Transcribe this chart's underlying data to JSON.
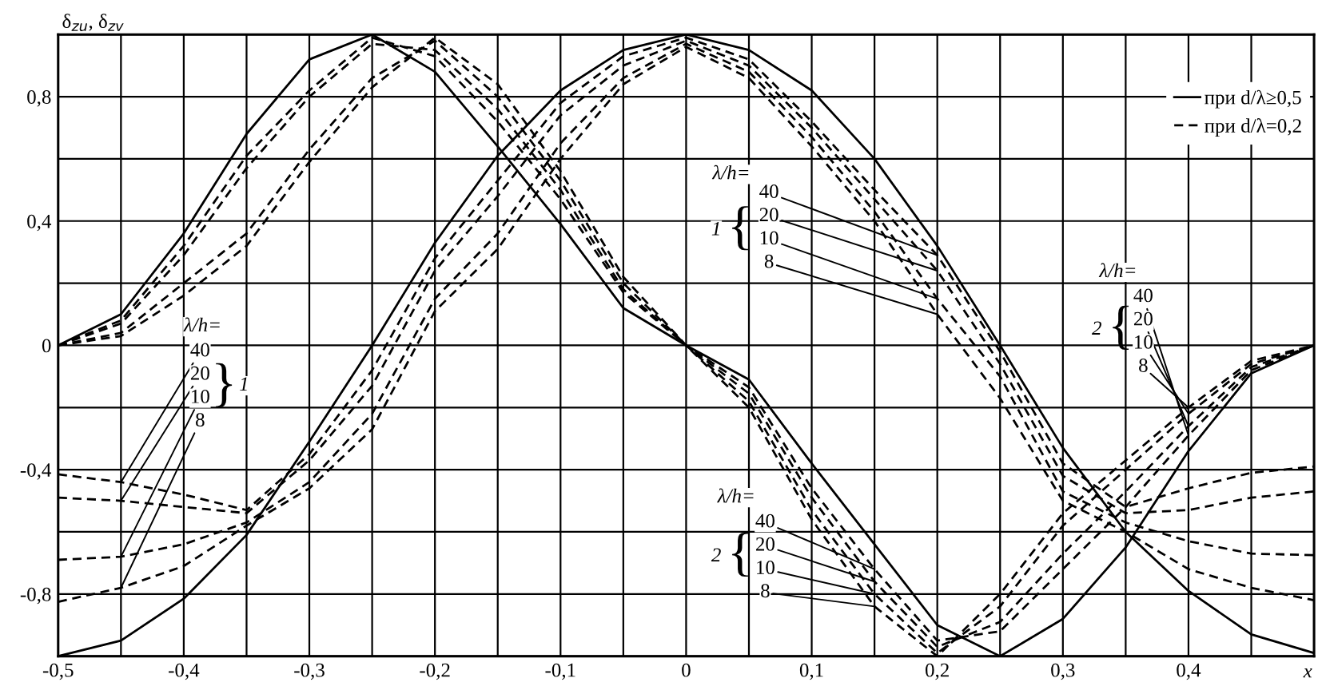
{
  "chart_data": {
    "type": "line",
    "xlabel": "x",
    "ylabel": "δ$_{zu}$, δ$_{zv}$",
    "x": [
      -0.5,
      -0.45,
      -0.4,
      -0.35,
      -0.3,
      -0.25,
      -0.2,
      -0.15,
      -0.1,
      -0.05,
      0,
      0.05,
      0.1,
      0.15,
      0.2,
      0.25,
      0.3,
      0.35,
      0.4,
      0.45,
      0.5
    ],
    "series": [
      {
        "name": "при d/λ≥0,5",
        "color": "#000000",
        "line_style": "solid",
        "values": [
          -1.0,
          -0.95,
          -0.815,
          -0.61,
          -0.31,
          0.0,
          0.33,
          0.61,
          0.82,
          0.95,
          1.0,
          0.95,
          0.82,
          0.6,
          0.32,
          0.0,
          -0.33,
          -0.6,
          -0.79,
          -0.93,
          -0.99
        ]
      },
      {
        "name": "при d/λ=0,2",
        "color": "#000000",
        "line_style": "dashed",
        "values": [
          -0.415,
          -0.44,
          -0.48,
          -0.53,
          -0.35,
          -0.08,
          0.28,
          0.53,
          0.78,
          0.93,
          0.99,
          0.92,
          0.72,
          0.5,
          0.29,
          -0.02,
          -0.38,
          -0.52,
          -0.46,
          -0.41,
          -0.39
        ]
      },
      {
        "color": "#000000",
        "line_style": "dashed",
        "values": [
          -0.49,
          -0.5,
          -0.52,
          -0.54,
          -0.37,
          -0.13,
          0.24,
          0.48,
          0.74,
          0.9,
          0.98,
          0.9,
          0.7,
          0.47,
          0.24,
          -0.06,
          -0.42,
          -0.54,
          -0.53,
          -0.49,
          -0.47
        ]
      },
      {
        "color": "#000000",
        "line_style": "dashed",
        "values": [
          -0.69,
          -0.68,
          -0.64,
          -0.57,
          -0.44,
          -0.22,
          0.15,
          0.36,
          0.65,
          0.86,
          0.97,
          0.88,
          0.67,
          0.43,
          0.15,
          -0.1,
          -0.47,
          -0.57,
          -0.63,
          -0.67,
          -0.675
        ]
      },
      {
        "color": "#000000",
        "line_style": "dashed",
        "values": [
          -0.825,
          -0.78,
          -0.71,
          -0.58,
          -0.46,
          -0.27,
          0.11,
          0.31,
          0.6,
          0.84,
          0.96,
          0.86,
          0.64,
          0.4,
          0.1,
          -0.17,
          -0.5,
          -0.6,
          -0.72,
          -0.78,
          -0.82
        ]
      },
      {
        "color": "#000000",
        "line_style": "solid",
        "values": [
          0,
          0.1,
          0.36,
          0.68,
          0.92,
          1.0,
          0.88,
          0.64,
          0.39,
          0.12,
          0,
          -0.11,
          -0.38,
          -0.64,
          -0.9,
          -1.0,
          -0.88,
          -0.65,
          -0.34,
          -0.09,
          0
        ]
      },
      {
        "color": "#000000",
        "line_style": "dashed",
        "values": [
          0,
          0.08,
          0.32,
          0.61,
          0.82,
          0.99,
          0.93,
          0.72,
          0.47,
          0.17,
          0,
          -0.135,
          -0.46,
          -0.72,
          -0.95,
          -0.92,
          -0.72,
          -0.52,
          -0.29,
          -0.08,
          0
        ]
      },
      {
        "color": "#000000",
        "line_style": "dashed",
        "values": [
          0,
          0.07,
          0.29,
          0.57,
          0.8,
          0.97,
          0.95,
          0.76,
          0.5,
          0.18,
          0,
          -0.155,
          -0.49,
          -0.76,
          -0.97,
          -0.89,
          -0.67,
          -0.47,
          -0.26,
          -0.07,
          0
        ]
      },
      {
        "color": "#000000",
        "line_style": "dashed",
        "values": [
          0,
          0.04,
          0.2,
          0.36,
          0.63,
          0.86,
          0.98,
          0.8,
          0.53,
          0.2,
          0,
          -0.18,
          -0.53,
          -0.8,
          -0.99,
          -0.84,
          -0.58,
          -0.4,
          -0.22,
          -0.06,
          0
        ]
      },
      {
        "color": "#000000",
        "line_style": "dashed",
        "values": [
          0,
          0.03,
          0.16,
          0.32,
          0.59,
          0.83,
          0.99,
          0.84,
          0.56,
          0.22,
          0,
          -0.2,
          -0.56,
          -0.84,
          -1.0,
          -0.8,
          -0.54,
          -0.37,
          -0.2,
          -0.05,
          0
        ]
      }
    ],
    "xlim": [
      -0.5,
      0.5
    ],
    "ylim": [
      -1.0,
      1.0
    ],
    "xticks": [
      {
        "value": -0.5,
        "label": "-0,5"
      },
      {
        "value": -0.45,
        "label": null
      },
      {
        "value": -0.4,
        "label": "-0,4"
      },
      {
        "value": -0.35,
        "label": null
      },
      {
        "value": -0.3,
        "label": "-0,3"
      },
      {
        "value": -0.25,
        "label": null
      },
      {
        "value": -0.2,
        "label": "-0,2"
      },
      {
        "value": -0.15,
        "label": null
      },
      {
        "value": -0.1,
        "label": "-0,1"
      },
      {
        "value": -0.05,
        "label": null
      },
      0,
      {
        "value": 0.05,
        "label": null
      },
      {
        "value": 0.1,
        "label": "0,1"
      },
      {
        "value": 0.15,
        "label": null
      },
      {
        "value": 0.2,
        "label": "0,2"
      },
      {
        "value": 0.25,
        "label": null
      },
      {
        "value": 0.3,
        "label": "0,3"
      },
      {
        "value": 0.35,
        "label": null
      },
      {
        "value": 0.4,
        "label": "0,4"
      },
      {
        "value": 0.45,
        "label": null
      },
      {
        "value": 0.5,
        "label": null
      }
    ],
    "yticks": [
      {
        "value": -1.0,
        "label": null
      },
      {
        "value": -0.8,
        "label": "-0,8"
      },
      {
        "value": -0.6,
        "label": null
      },
      {
        "value": -0.4,
        "label": "-0,4"
      },
      {
        "value": -0.2,
        "label": null
      },
      0,
      {
        "value": 0.2,
        "label": null
      },
      {
        "value": 0.4,
        "label": "0,4"
      },
      {
        "value": 0.6,
        "label": null
      },
      {
        "value": 0.8,
        "label": "0,8"
      },
      {
        "value": 1.0,
        "label": null
      }
    ],
    "grid": true,
    "legend": "top right",
    "annotations": [
      "λ/h=",
      "1",
      "}",
      {
        "text": "40",
        "x": -0.45,
        "y": -0.44
      },
      {
        "text": "20",
        "x": -0.45,
        "y": -0.5
      },
      {
        "text": "10",
        "x": -0.45,
        "y": -0.68
      },
      {
        "text": "8",
        "x": -0.45,
        "y": -0.78
      },
      "λ/h=",
      "1",
      "{",
      {
        "text": "40",
        "x": 0.2,
        "y": 0.29
      },
      {
        "text": "20",
        "x": 0.2,
        "y": 0.24
      },
      {
        "text": "10",
        "x": 0.2,
        "y": 0.15
      },
      {
        "text": "8",
        "x": 0.2,
        "y": 0.1
      },
      "λ/h=",
      "2",
      "{",
      {
        "text": "40",
        "x": 0.15,
        "y": -0.72
      },
      {
        "text": "20",
        "x": 0.15,
        "y": -0.76
      },
      {
        "text": "10",
        "x": 0.15,
        "y": -0.8
      },
      {
        "text": "8",
        "x": 0.15,
        "y": -0.84
      },
      "λ/h=",
      "2",
      "{",
      {
        "text": "40",
        "x": 0.4,
        "y": -0.29
      },
      {
        "text": "20",
        "x": 0.4,
        "y": -0.26
      },
      {
        "text": "10",
        "x": 0.4,
        "y": -0.22
      },
      {
        "text": "8",
        "x": 0.4,
        "y": -0.2
      }
    ]
  }
}
